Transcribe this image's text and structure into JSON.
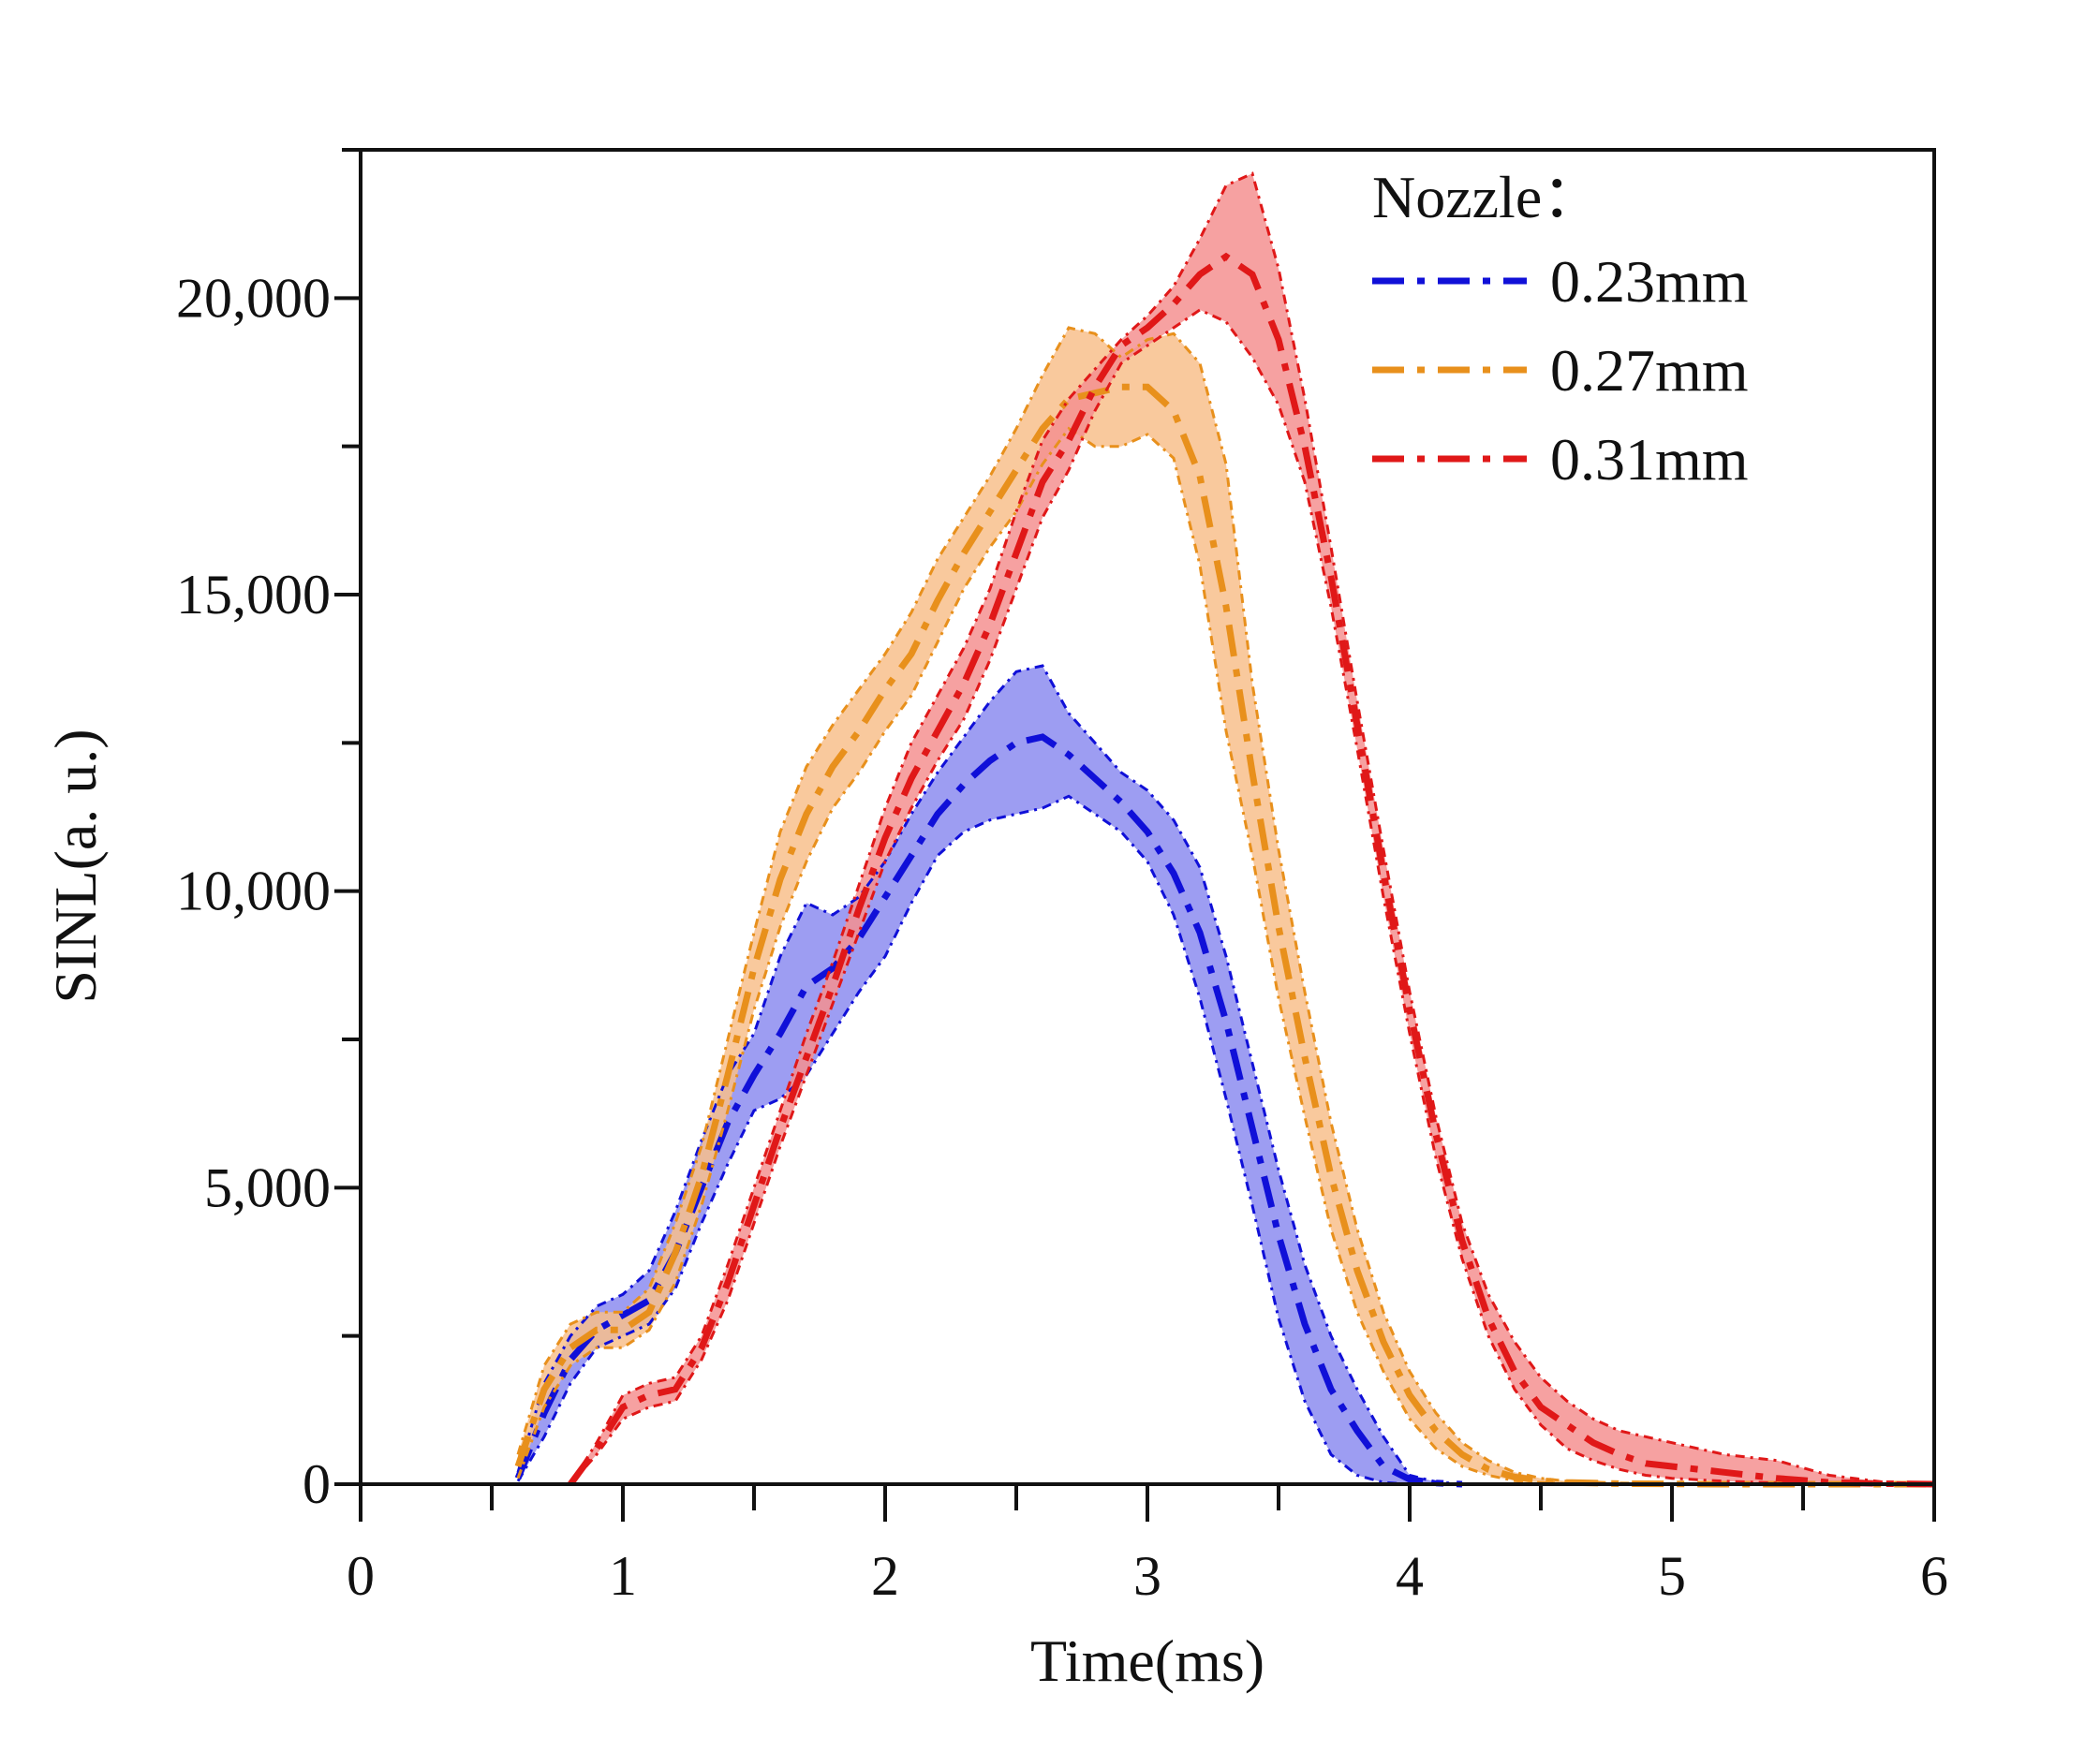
{
  "chart_data": {
    "type": "area",
    "title": "",
    "xlabel": "Time(ms)",
    "ylabel": "SINL(a. u.)",
    "xlim": [
      0,
      6
    ],
    "ylim": [
      0,
      22500
    ],
    "xticks": [
      "0",
      "1",
      "2",
      "3",
      "4",
      "5",
      "6"
    ],
    "yticks": [
      "0",
      "5,000",
      "10,000",
      "15,000",
      "20,000"
    ],
    "legend_title": "Nozzle：",
    "legend_position": "top-right",
    "grid": false,
    "series": [
      {
        "name": "0.23mm",
        "color": "#1010d8",
        "fill": "#8c8cf0",
        "x": [
          0.6,
          0.7,
          0.8,
          0.9,
          1.0,
          1.1,
          1.2,
          1.3,
          1.4,
          1.5,
          1.6,
          1.7,
          1.8,
          1.9,
          2.0,
          2.1,
          2.2,
          2.3,
          2.4,
          2.5,
          2.6,
          2.7,
          2.8,
          2.9,
          3.0,
          3.1,
          3.2,
          3.3,
          3.4,
          3.5,
          3.6,
          3.7,
          3.8,
          3.9,
          4.0,
          4.1,
          4.2
        ],
        "mean": [
          100,
          1200,
          2100,
          2600,
          2850,
          3100,
          3900,
          5000,
          6100,
          6900,
          7600,
          8400,
          8700,
          9200,
          9900,
          10600,
          11300,
          11800,
          12200,
          12500,
          12600,
          12300,
          11900,
          11500,
          11000,
          10300,
          9300,
          7800,
          6000,
          4200,
          2700,
          1600,
          900,
          300,
          80,
          20,
          0
        ],
        "upper": [
          200,
          1700,
          2500,
          3000,
          3200,
          3600,
          4600,
          5800,
          6900,
          7600,
          8900,
          9800,
          9600,
          9900,
          10500,
          11300,
          12000,
          12600,
          13200,
          13700,
          13800,
          13000,
          12500,
          12000,
          11700,
          11200,
          10400,
          8900,
          7100,
          5300,
          3700,
          2500,
          1600,
          800,
          150,
          40,
          0
        ],
        "lower": [
          50,
          800,
          1700,
          2300,
          2500,
          2700,
          3300,
          4400,
          5400,
          6300,
          6500,
          6900,
          7600,
          8300,
          8900,
          9800,
          10600,
          11000,
          11200,
          11300,
          11400,
          11600,
          11300,
          11000,
          10500,
          9600,
          8200,
          6500,
          4700,
          2800,
          1400,
          500,
          150,
          30,
          0,
          0,
          0
        ]
      },
      {
        "name": "0.27mm",
        "color": "#e8901c",
        "fill": "#f8c08c",
        "x": [
          0.6,
          0.7,
          0.8,
          0.9,
          1.0,
          1.1,
          1.2,
          1.3,
          1.4,
          1.5,
          1.6,
          1.7,
          1.8,
          1.9,
          2.0,
          2.1,
          2.2,
          2.3,
          2.4,
          2.5,
          2.6,
          2.7,
          2.8,
          2.9,
          3.0,
          3.1,
          3.2,
          3.3,
          3.4,
          3.5,
          3.6,
          3.7,
          3.8,
          3.9,
          4.0,
          4.1,
          4.2,
          4.3,
          4.4,
          4.5,
          4.6,
          4.8,
          5.0,
          5.2,
          5.4,
          5.6,
          5.8,
          6.0
        ],
        "mean": [
          300,
          1600,
          2300,
          2600,
          2600,
          2900,
          3900,
          5200,
          6900,
          8700,
          10200,
          11300,
          12100,
          12700,
          13400,
          14000,
          14900,
          15700,
          16400,
          17100,
          17800,
          18300,
          18400,
          18500,
          18500,
          18100,
          17000,
          14800,
          12000,
          9400,
          7200,
          5200,
          3600,
          2400,
          1500,
          900,
          500,
          250,
          120,
          60,
          30,
          10,
          5,
          0,
          0,
          0,
          0,
          0
        ],
        "upper": [
          500,
          2000,
          2700,
          2900,
          2900,
          3300,
          4400,
          5700,
          7500,
          9300,
          11000,
          12100,
          12800,
          13400,
          14000,
          14700,
          15600,
          16300,
          17000,
          17800,
          18700,
          19500,
          19400,
          19000,
          19300,
          19400,
          18900,
          17200,
          13500,
          10700,
          8300,
          6100,
          4300,
          2900,
          1900,
          1200,
          700,
          400,
          200,
          100,
          50,
          20,
          10,
          0,
          0,
          0,
          0,
          0
        ],
        "lower": [
          100,
          1300,
          2000,
          2300,
          2300,
          2600,
          3400,
          4700,
          6300,
          8000,
          9400,
          10500,
          11400,
          12000,
          12700,
          13300,
          14200,
          15100,
          15800,
          16400,
          17200,
          17800,
          17500,
          17500,
          17700,
          17300,
          15500,
          12700,
          10600,
          8200,
          6200,
          4300,
          2900,
          1900,
          1100,
          600,
          300,
          150,
          60,
          30,
          10,
          0,
          0,
          0,
          0,
          0,
          0,
          0
        ]
      },
      {
        "name": "0.31mm",
        "color": "#e01818",
        "fill": "#f59090",
        "x": [
          0.8,
          0.9,
          1.0,
          1.1,
          1.2,
          1.3,
          1.4,
          1.5,
          1.6,
          1.7,
          1.8,
          1.9,
          2.0,
          2.1,
          2.2,
          2.3,
          2.4,
          2.5,
          2.6,
          2.7,
          2.8,
          2.9,
          3.0,
          3.1,
          3.2,
          3.3,
          3.4,
          3.5,
          3.6,
          3.7,
          3.8,
          3.9,
          4.0,
          4.1,
          4.2,
          4.3,
          4.4,
          4.5,
          4.6,
          4.7,
          4.8,
          4.9,
          5.0,
          5.2,
          5.4,
          5.6,
          5.8,
          6.0
        ],
        "mean": [
          0,
          600,
          1300,
          1500,
          1600,
          2300,
          3400,
          4700,
          6000,
          7200,
          8400,
          9700,
          10900,
          11900,
          12700,
          13500,
          14500,
          15700,
          16900,
          17600,
          18500,
          19200,
          19500,
          19900,
          20400,
          20700,
          20400,
          19300,
          17500,
          15300,
          12800,
          10300,
          8000,
          5900,
          4100,
          2800,
          1900,
          1300,
          1000,
          700,
          500,
          350,
          300,
          200,
          100,
          30,
          10,
          0
        ],
        "upper": [
          0,
          700,
          1500,
          1700,
          1800,
          2500,
          3700,
          5000,
          6300,
          7600,
          8800,
          10100,
          11400,
          12500,
          13300,
          14100,
          15100,
          16400,
          17600,
          18300,
          18800,
          19300,
          19700,
          20200,
          21000,
          21900,
          22100,
          20500,
          18300,
          15800,
          13200,
          10700,
          8300,
          6200,
          4400,
          3200,
          2400,
          1800,
          1400,
          1100,
          900,
          800,
          700,
          500,
          400,
          150,
          40,
          0
        ],
        "lower": [
          0,
          500,
          1100,
          1300,
          1400,
          2100,
          3100,
          4400,
          5700,
          6900,
          8100,
          9300,
          10500,
          11400,
          12200,
          12900,
          13900,
          15100,
          16300,
          17100,
          18100,
          18900,
          19200,
          19500,
          19800,
          19600,
          19000,
          18200,
          16900,
          14800,
          12400,
          9900,
          7600,
          5500,
          3800,
          2500,
          1600,
          1000,
          600,
          400,
          250,
          150,
          100,
          50,
          20,
          5,
          0,
          0
        ]
      }
    ]
  }
}
